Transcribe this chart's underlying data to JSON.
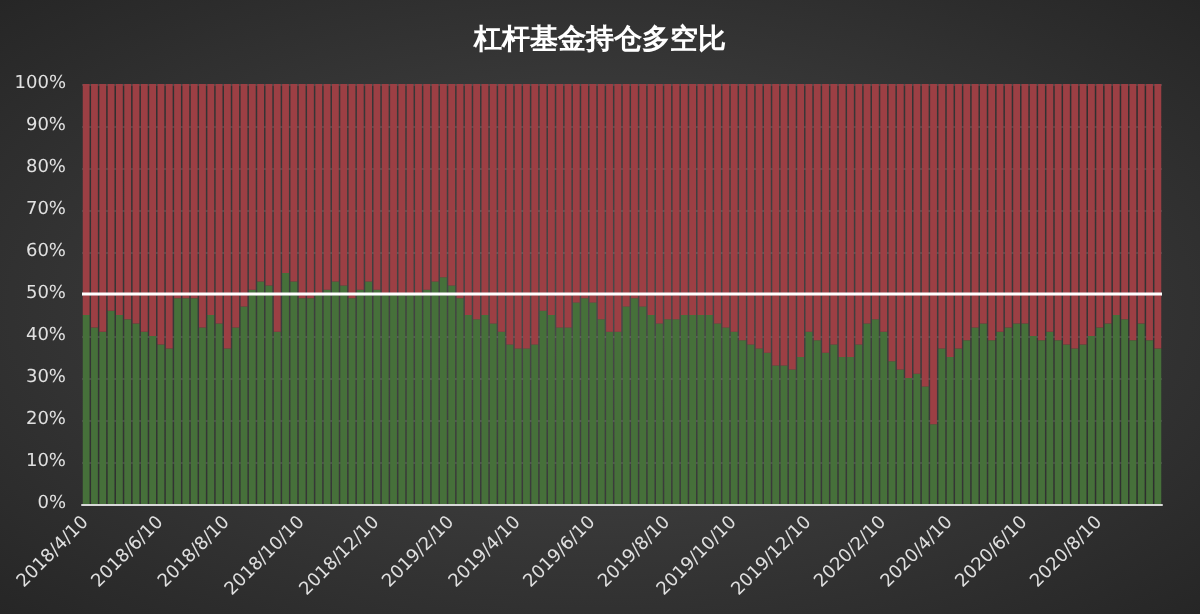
{
  "chart_data": {
    "type": "bar",
    "title": "杠杆基金持仓多空比",
    "stacked": true,
    "grid": "y",
    "categories": [
      "2018/4/10",
      null,
      null,
      null,
      null,
      null,
      null,
      null,
      null,
      "2018/6/10",
      null,
      null,
      null,
      null,
      null,
      null,
      null,
      "2018/8/10",
      null,
      null,
      null,
      null,
      null,
      null,
      null,
      null,
      "2018/10/10",
      null,
      null,
      null,
      null,
      null,
      null,
      null,
      null,
      "2018/12/10",
      null,
      null,
      null,
      null,
      null,
      null,
      null,
      null,
      "2019/2/10",
      null,
      null,
      null,
      null,
      null,
      null,
      null,
      "2019/4/10",
      null,
      null,
      null,
      null,
      null,
      null,
      null,
      null,
      "2019/6/10",
      null,
      null,
      null,
      null,
      null,
      null,
      null,
      null,
      "2019/8/10",
      null,
      null,
      null,
      null,
      null,
      null,
      null,
      "2019/10/10",
      null,
      null,
      null,
      null,
      null,
      null,
      null,
      null,
      "2019/12/10",
      null,
      null,
      null,
      null,
      null,
      null,
      null,
      null,
      "2020/2/10",
      null,
      null,
      null,
      null,
      null,
      null,
      null,
      "2020/4/10",
      null,
      null,
      null,
      null,
      null,
      null,
      null,
      null,
      "2020/6/10",
      null,
      null,
      null,
      null,
      null,
      null,
      null,
      null,
      "2020/8/10",
      null,
      null,
      null,
      null,
      null,
      null,
      null
    ],
    "ylim": [
      0,
      100
    ],
    "yticks": [
      {
        "value": 0,
        "label": "0%"
      },
      {
        "value": 10,
        "label": "10%"
      },
      {
        "value": 20,
        "label": "20%"
      },
      {
        "value": 30,
        "label": "30%"
      },
      {
        "value": 40,
        "label": "40%"
      },
      {
        "value": 50,
        "label": "50%"
      },
      {
        "value": 60,
        "label": "60%"
      },
      {
        "value": 70,
        "label": "70%"
      },
      {
        "value": 80,
        "label": "80%"
      },
      {
        "value": 90,
        "label": "90%"
      },
      {
        "value": 100,
        "label": "100%"
      }
    ],
    "ref_lines": [
      {
        "axis": "y",
        "value": 50,
        "color": "#ffffff"
      }
    ],
    "series": [
      {
        "color": "#46703a",
        "values": [
          45,
          42,
          41,
          46,
          45,
          44,
          43,
          41,
          40,
          38,
          37,
          49,
          49,
          49,
          42,
          45,
          43,
          37,
          42,
          47,
          51,
          53,
          52,
          41,
          55,
          53,
          49,
          49,
          50,
          51,
          53,
          52,
          49,
          51,
          53,
          51,
          50,
          50,
          50,
          50,
          50,
          51,
          53,
          54,
          52,
          49,
          45,
          44,
          45,
          43,
          41,
          38,
          37,
          37,
          38,
          46,
          45,
          42,
          42,
          48,
          49,
          48,
          44,
          41,
          41,
          47,
          49,
          47,
          45,
          43,
          44,
          44,
          45,
          45,
          45,
          45,
          43,
          42,
          41,
          39,
          38,
          37,
          36,
          33,
          33,
          32,
          35,
          41,
          39,
          36,
          38,
          35,
          35,
          38,
          43,
          44,
          41,
          34,
          32,
          30,
          31,
          28,
          19,
          37,
          35,
          37,
          39,
          42,
          43,
          39,
          41,
          42,
          43,
          43,
          40,
          39,
          41,
          39,
          38,
          37,
          38,
          40,
          42,
          43,
          45,
          44,
          39,
          43,
          39,
          37
        ]
      },
      {
        "color": "#9c3f44",
        "values": [
          55,
          58,
          59,
          54,
          55,
          56,
          57,
          59,
          60,
          62,
          63,
          51,
          51,
          51,
          58,
          55,
          57,
          63,
          58,
          53,
          49,
          47,
          48,
          59,
          45,
          47,
          51,
          51,
          50,
          49,
          47,
          48,
          51,
          49,
          47,
          49,
          50,
          50,
          50,
          50,
          50,
          49,
          47,
          46,
          48,
          51,
          55,
          56,
          55,
          57,
          59,
          62,
          63,
          63,
          62,
          54,
          55,
          58,
          58,
          52,
          51,
          52,
          56,
          59,
          59,
          53,
          51,
          53,
          55,
          57,
          56,
          56,
          55,
          55,
          55,
          55,
          57,
          58,
          59,
          61,
          62,
          63,
          64,
          67,
          67,
          68,
          65,
          59,
          61,
          64,
          62,
          65,
          65,
          62,
          57,
          56,
          59,
          66,
          68,
          70,
          69,
          72,
          81,
          63,
          65,
          63,
          61,
          58,
          57,
          61,
          59,
          58,
          57,
          57,
          60,
          61,
          59,
          61,
          62,
          63,
          62,
          60,
          58,
          57,
          55,
          56,
          61,
          57,
          61,
          63
        ]
      }
    ]
  }
}
